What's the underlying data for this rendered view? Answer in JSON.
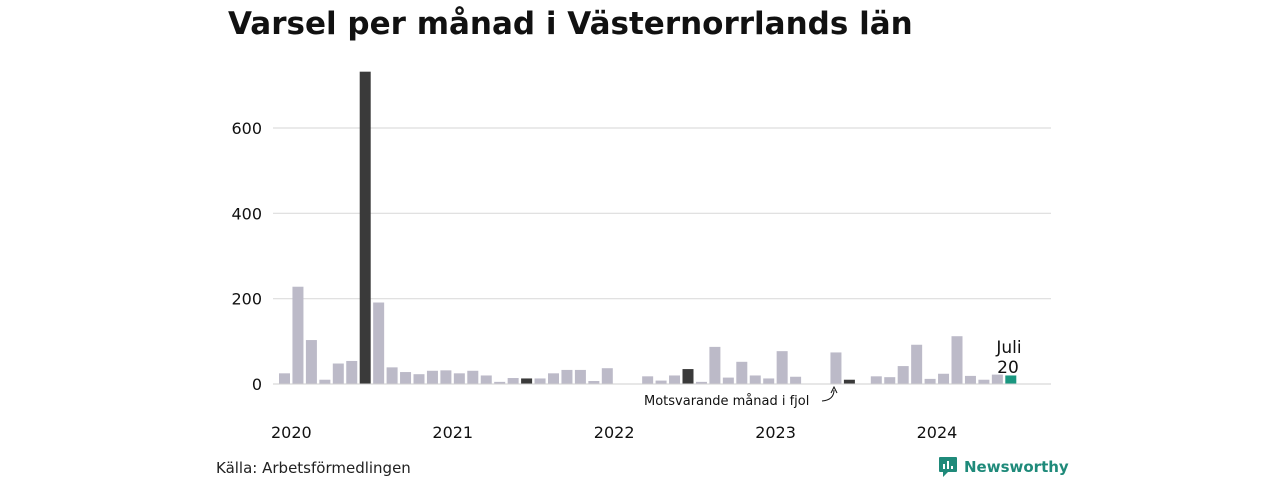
{
  "title": "Varsel per månad i Västernorrlands län",
  "source": "Källa: Arbetsförmedlingen",
  "brand": {
    "name": "Newsworthy",
    "icon": "newsworthy-logo-icon"
  },
  "colors": {
    "default_bar": "#bcbac8",
    "same_month_bar": "#3a3a3a",
    "highlight_bar": "#1a9780",
    "gridline": "#dddddd",
    "brand": "#1f8a7a"
  },
  "annotation": "Motsvarande månad i fjol",
  "highlight_label": {
    "month": "Juli",
    "value": "20"
  },
  "chart_data": {
    "type": "bar",
    "title": "Varsel per månad i Västernorrlands län",
    "xlabel": "",
    "ylabel": "",
    "ylim": [
      0,
      740
    ],
    "yticks": [
      0,
      200,
      400,
      600
    ],
    "grid": true,
    "year_labels": [
      {
        "label": "2020",
        "start_index": 0
      },
      {
        "label": "2021",
        "start_index": 12
      },
      {
        "label": "2022",
        "start_index": 24
      },
      {
        "label": "2023",
        "start_index": 36
      },
      {
        "label": "2024",
        "start_index": 48
      }
    ],
    "categories": [
      "2020-01",
      "2020-02",
      "2020-03",
      "2020-04",
      "2020-05",
      "2020-06",
      "2020-07",
      "2020-08",
      "2020-09",
      "2020-10",
      "2020-11",
      "2020-12",
      "2021-01",
      "2021-02",
      "2021-03",
      "2021-04",
      "2021-05",
      "2021-06",
      "2021-07",
      "2021-08",
      "2021-09",
      "2021-10",
      "2021-11",
      "2021-12",
      "2022-01",
      "2022-02",
      "2022-03",
      "2022-04",
      "2022-05",
      "2022-06",
      "2022-07",
      "2022-08",
      "2022-09",
      "2022-10",
      "2022-11",
      "2022-12",
      "2023-01",
      "2023-02",
      "2023-03",
      "2023-04",
      "2023-05",
      "2023-06",
      "2023-07",
      "2023-08",
      "2023-09",
      "2023-10",
      "2023-11",
      "2023-12",
      "2024-01",
      "2024-02",
      "2024-03",
      "2024-04",
      "2024-05",
      "2024-06",
      "2024-07"
    ],
    "values": [
      25,
      228,
      103,
      10,
      48,
      54,
      732,
      191,
      39,
      28,
      23,
      31,
      32,
      25,
      31,
      20,
      5,
      14,
      13,
      13,
      25,
      33,
      33,
      7,
      37,
      0,
      0,
      18,
      8,
      20,
      35,
      5,
      87,
      15,
      52,
      20,
      13,
      77,
      17,
      0,
      0,
      74,
      10,
      0,
      18,
      16,
      42,
      92,
      12,
      24,
      112,
      19,
      10,
      22,
      20
    ],
    "same_month_last_year_indices": [
      6,
      18,
      30,
      42
    ],
    "highlight_index": 54
  }
}
